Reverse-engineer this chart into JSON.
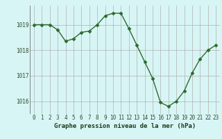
{
  "x": [
    0,
    1,
    2,
    3,
    4,
    5,
    6,
    7,
    8,
    9,
    10,
    11,
    12,
    13,
    14,
    15,
    16,
    17,
    18,
    19,
    20,
    21,
    22,
    23
  ],
  "y": [
    1019.0,
    1019.0,
    1019.0,
    1018.8,
    1018.35,
    1018.45,
    1018.7,
    1018.75,
    1019.0,
    1019.35,
    1019.45,
    1019.45,
    1018.85,
    1018.2,
    1017.55,
    1016.9,
    1015.95,
    1015.8,
    1016.0,
    1016.4,
    1017.1,
    1017.65,
    1018.0,
    1018.2
  ],
  "line_color": "#2d6a2d",
  "marker": "D",
  "markersize": 2.5,
  "linewidth": 1.0,
  "bg_color": "#d8f5f5",
  "grid_color": "#b0b0b0",
  "ylim": [
    1015.5,
    1019.75
  ],
  "yticks": [
    1016,
    1017,
    1018,
    1019
  ],
  "xlabel": "Graphe pression niveau de la mer (hPa)",
  "xlabel_fontsize": 6.5,
  "tick_fontsize": 5.5,
  "ylabel_fontsize": 5.5
}
